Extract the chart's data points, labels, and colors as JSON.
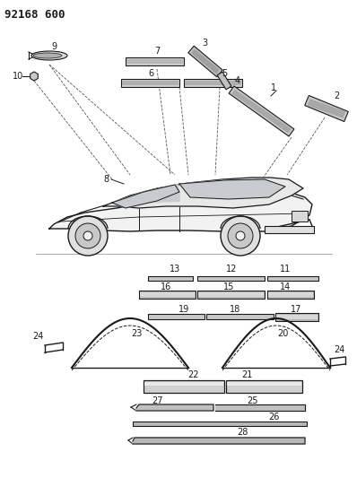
{
  "title": "92168 600",
  "bg_color": "#ffffff",
  "line_color": "#1a1a1a",
  "fig_width": 3.98,
  "fig_height": 5.33,
  "dpi": 100,
  "top_items": {
    "item9_label": "9",
    "item10_label": "10",
    "item7_label": "7",
    "item3_label": "3",
    "item6_label": "6",
    "item5_label": "5",
    "item4_label": "4",
    "item1_label": "1",
    "item2_label": "2",
    "item8_label": "8"
  },
  "bottom_items": {
    "labels": [
      "13",
      "12",
      "11",
      "16",
      "15",
      "14",
      "19",
      "18",
      "17",
      "23",
      "22",
      "21",
      "20",
      "24",
      "27",
      "25",
      "26",
      "28"
    ]
  }
}
